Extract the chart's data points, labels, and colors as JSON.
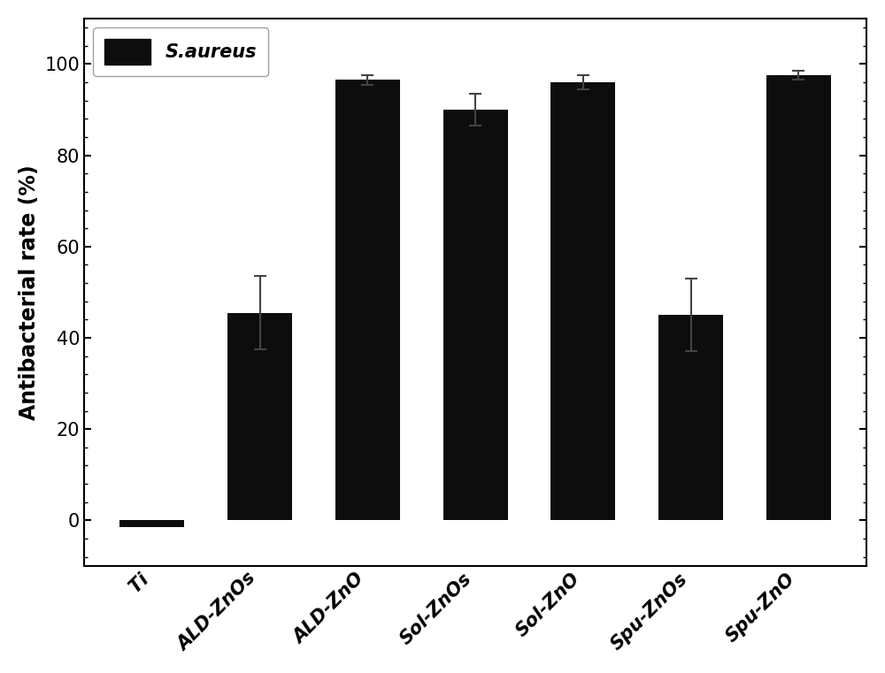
{
  "categories": [
    "Ti",
    "ALD-ZnOs",
    "ALD-ZnO",
    "Sol-ZnOs",
    "Sol-ZnO",
    "Spu-ZnOs",
    "Spu-ZnO"
  ],
  "values": [
    -1.5,
    45.5,
    96.5,
    90.0,
    96.0,
    45.0,
    97.5
  ],
  "errors": [
    0.0,
    8.0,
    1.0,
    3.5,
    1.5,
    8.0,
    1.0
  ],
  "bar_color": "#0d0d0d",
  "error_color": "#444444",
  "ylabel": "Antibacterial rate (%)",
  "ylim": [
    -10,
    110
  ],
  "yticks": [
    0,
    20,
    40,
    60,
    80,
    100
  ],
  "legend_label": "S.aureus",
  "legend_fontsize": 15,
  "bar_width": 0.6,
  "axis_fontsize": 17,
  "tick_fontsize": 15,
  "background_color": "#ffffff",
  "figure_facecolor": "#ffffff"
}
